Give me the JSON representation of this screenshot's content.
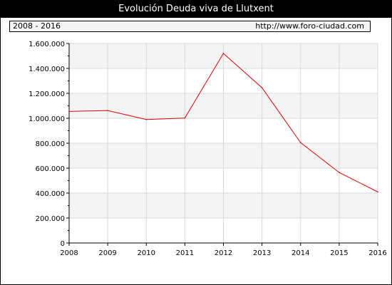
{
  "header": {
    "title": "Evolución Deuda viva de Llutxent",
    "period": "2008 - 2016",
    "source": "http://www.foro-ciudad.com"
  },
  "colors": {
    "line": "#dd0000",
    "band": "#f4f4f4",
    "grid": "#d8d8d8",
    "title_bg": "#000000"
  },
  "chart_data": {
    "type": "line",
    "title": "Evolución Deuda viva de Llutxent",
    "xlabel": "",
    "ylabel": "",
    "categories": [
      "2008",
      "2009",
      "2010",
      "2011",
      "2012",
      "2013",
      "2014",
      "2015",
      "2016"
    ],
    "series": [
      {
        "values": [
          1055000,
          1062000,
          990000,
          1002000,
          1520000,
          1245000,
          805000,
          565000,
          410000
        ]
      }
    ],
    "ylim": [
      0,
      1600000
    ],
    "y_ticks": [
      0,
      200000,
      400000,
      600000,
      800000,
      1000000,
      1200000,
      1400000,
      1600000
    ],
    "y_tick_labels": [
      "0",
      "200.000",
      "400.000",
      "600.000",
      "800.000",
      "1.000.000",
      "1.200.000",
      "1.400.000",
      "1.600.000"
    ],
    "grid": true,
    "legend": "none"
  }
}
